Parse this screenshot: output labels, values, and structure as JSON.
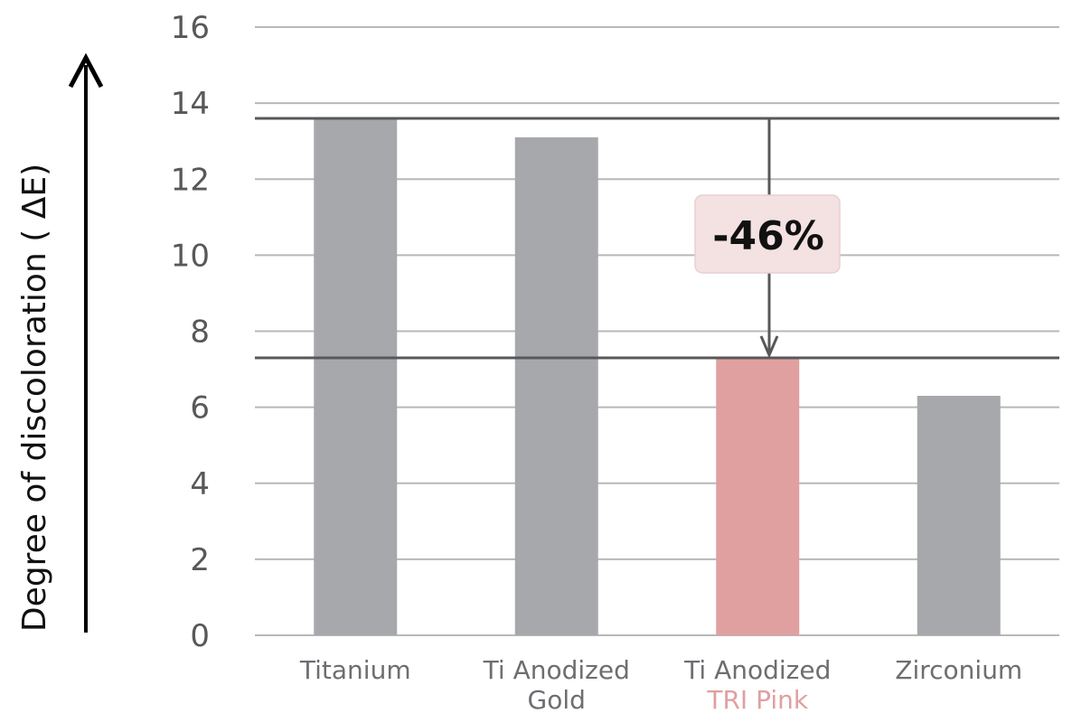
{
  "chart_data": {
    "type": "bar",
    "title": "",
    "ylabel": "Degree of discoloration ( ΔE)",
    "xlabel": "",
    "ylim": [
      0,
      16
    ],
    "yticks": [
      0,
      2,
      4,
      6,
      8,
      10,
      12,
      14,
      16
    ],
    "grid": true,
    "categories": [
      {
        "line1": "Titanium",
        "line2": ""
      },
      {
        "line1": "Ti Anodized",
        "line2": "Gold"
      },
      {
        "line1": "Ti Anodized",
        "line2": "TRI Pink"
      },
      {
        "line1": "Zirconium",
        "line2": ""
      }
    ],
    "values": [
      13.6,
      13.1,
      7.3,
      6.3
    ],
    "highlight_index": 2,
    "reference_lines": [
      13.6,
      7.3
    ],
    "annotation": {
      "text": "-46%",
      "from": 13.6,
      "to": 7.3
    }
  },
  "colors": {
    "bar": "#a7a8ab",
    "highlight": "#e0a0a0",
    "grid": "#b8b8b8",
    "reference": "#58585a",
    "callout_bg": "#f4e1e2"
  }
}
